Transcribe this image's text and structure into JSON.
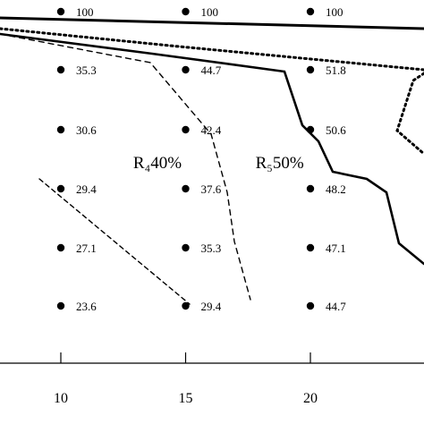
{
  "chart_data": {
    "type": "scatter",
    "x_ticks": [
      "10",
      "15",
      "20"
    ],
    "points": [
      {
        "x": 10,
        "y_row": 0,
        "label": "100"
      },
      {
        "x": 15,
        "y_row": 0,
        "label": "100"
      },
      {
        "x": 20,
        "y_row": 0,
        "label": "100"
      },
      {
        "x": 10,
        "y_row": 1,
        "label": "35.3"
      },
      {
        "x": 15,
        "y_row": 1,
        "label": "44.7"
      },
      {
        "x": 20,
        "y_row": 1,
        "label": "51.8"
      },
      {
        "x": 10,
        "y_row": 2,
        "label": "30.6"
      },
      {
        "x": 15,
        "y_row": 2,
        "label": "42.4"
      },
      {
        "x": 20,
        "y_row": 2,
        "label": "50.6"
      },
      {
        "x": 10,
        "y_row": 3,
        "label": "29.4"
      },
      {
        "x": 15,
        "y_row": 3,
        "label": "37.6"
      },
      {
        "x": 20,
        "y_row": 3,
        "label": "48.2"
      },
      {
        "x": 10,
        "y_row": 4,
        "label": "27.1"
      },
      {
        "x": 15,
        "y_row": 4,
        "label": "35.3"
      },
      {
        "x": 20,
        "y_row": 4,
        "label": "47.1"
      },
      {
        "x": 10,
        "y_row": 5,
        "label": "23.6"
      },
      {
        "x": 15,
        "y_row": 5,
        "label": "29.4"
      },
      {
        "x": 20,
        "y_row": 5,
        "label": "44.7"
      }
    ],
    "region_labels": [
      {
        "text": "%",
        "near_x": 5.2
      },
      {
        "text": "R₄40%",
        "near_x": 12.9
      },
      {
        "text": "R₅50%",
        "near_x": 17.8
      }
    ],
    "boundary_lines": [
      {
        "style": "solid",
        "name": "top-solid"
      },
      {
        "style": "dotted",
        "name": "top-dotted"
      },
      {
        "style": "dashed",
        "name": "dashed-r4"
      },
      {
        "style": "solid",
        "name": "solid-r5"
      },
      {
        "style": "dashed",
        "name": "dashed-short"
      },
      {
        "style": "dotted",
        "name": "dotted-right"
      }
    ]
  }
}
